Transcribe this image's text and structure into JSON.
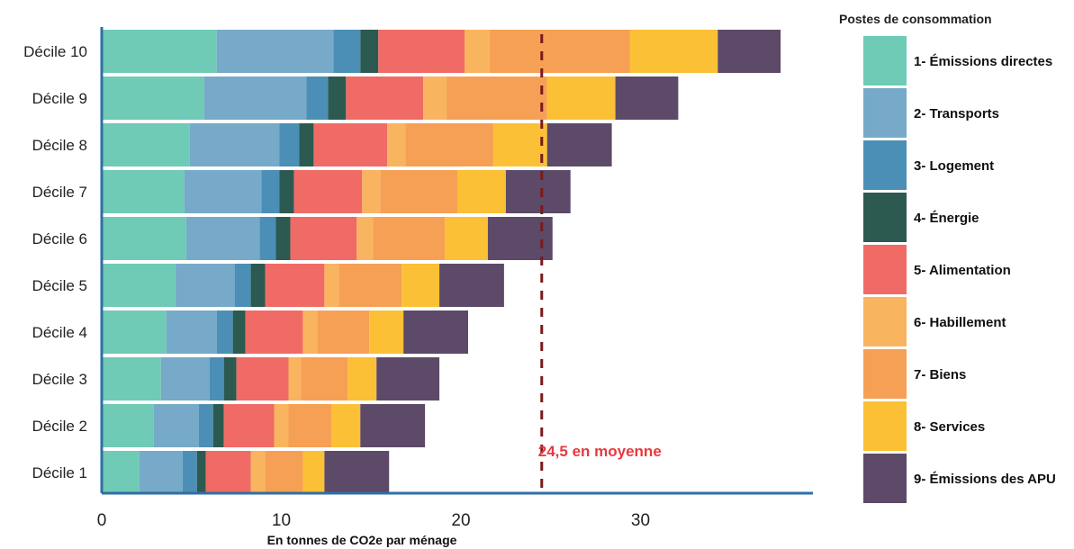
{
  "chart_data": {
    "type": "bar",
    "orientation": "horizontal",
    "stacked": true,
    "xlabel": "En tonnes de CO2e par ménage",
    "ylabel": "",
    "xlim": [
      0,
      38
    ],
    "xticks": [
      "0",
      "10",
      "20",
      "30"
    ],
    "grid": false,
    "categories": [
      "Décile 1",
      "Décile 2",
      "Décile 3",
      "Décile 4",
      "Décile 5",
      "Décile 6",
      "Décile 7",
      "Décile 8",
      "Décile 9",
      "Décile 10"
    ],
    "legend_title": "Postes de consommation",
    "legend_position": "right",
    "series": [
      {
        "name": "1- Émissions directes",
        "color": "#6fcab6",
        "values": [
          2.1,
          2.9,
          3.3,
          3.6,
          4.1,
          4.7,
          4.6,
          4.9,
          5.7,
          6.4
        ]
      },
      {
        "name": "2- Transports",
        "color": "#76aac8",
        "values": [
          2.4,
          2.5,
          2.7,
          2.8,
          3.3,
          4.1,
          4.3,
          5.0,
          5.7,
          6.5
        ]
      },
      {
        "name": "3- Logement",
        "color": "#4b8fb6",
        "values": [
          0.8,
          0.8,
          0.8,
          0.9,
          0.9,
          0.9,
          1.0,
          1.1,
          1.2,
          1.5
        ]
      },
      {
        "name": "4- Énergie",
        "color": "#2c5a50",
        "values": [
          0.5,
          0.6,
          0.7,
          0.7,
          0.8,
          0.8,
          0.8,
          0.8,
          1.0,
          1.0
        ]
      },
      {
        "name": "5- Alimentation",
        "color": "#f06b65",
        "values": [
          2.5,
          2.8,
          2.9,
          3.2,
          3.3,
          3.7,
          3.8,
          4.1,
          4.3,
          4.8
        ]
      },
      {
        "name": "6- Habillement",
        "color": "#f9b460",
        "values": [
          0.8,
          0.8,
          0.7,
          0.8,
          0.8,
          0.9,
          1.0,
          1.0,
          1.3,
          1.4
        ]
      },
      {
        "name": "7- Biens",
        "color": "#f6a055",
        "values": [
          2.1,
          2.4,
          2.6,
          2.9,
          3.5,
          4.0,
          4.3,
          4.9,
          5.6,
          7.8
        ]
      },
      {
        "name": "8- Services",
        "color": "#fbc035",
        "values": [
          1.2,
          1.6,
          1.6,
          1.9,
          2.1,
          2.4,
          2.7,
          3.0,
          3.8,
          4.9
        ]
      },
      {
        "name": "9- Émissions des APU",
        "color": "#5c4a68",
        "values": [
          3.6,
          3.6,
          3.5,
          3.6,
          3.6,
          3.6,
          3.6,
          3.6,
          3.5,
          3.5
        ]
      }
    ],
    "reference_line": {
      "value": 24.5,
      "label": "24,5 en moyenne",
      "color": "#7a1a1a"
    }
  },
  "colors": {
    "axis": "#2f6fa7",
    "mean_label": "#e8383f"
  }
}
